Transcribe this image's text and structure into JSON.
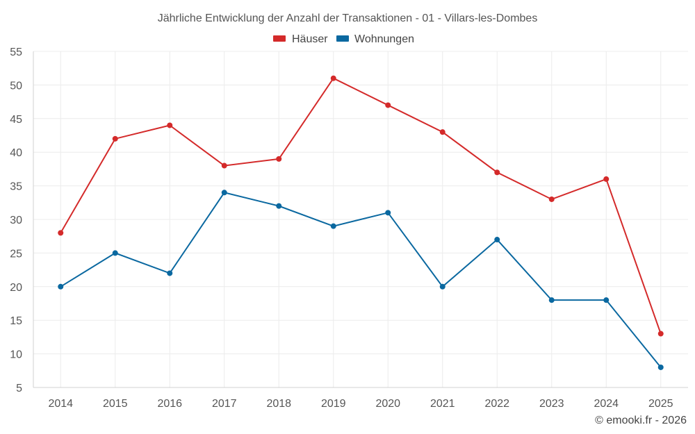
{
  "chart_data": {
    "type": "line",
    "title": "Jährliche Entwicklung der Anzahl der Transaktionen - 01 - Villars-les-Dombes",
    "categories": [
      "2014",
      "2015",
      "2016",
      "2017",
      "2018",
      "2019",
      "2020",
      "2021",
      "2022",
      "2023",
      "2024",
      "2025"
    ],
    "series": [
      {
        "name": "Häuser",
        "color": "#d42a2a",
        "values": [
          28,
          42,
          44,
          38,
          39,
          51,
          47,
          43,
          37,
          33,
          36,
          13
        ]
      },
      {
        "name": "Wohnungen",
        "color": "#0a68a0",
        "values": [
          20,
          25,
          22,
          34,
          32,
          29,
          31,
          20,
          27,
          18,
          18,
          8
        ]
      }
    ],
    "ylim": [
      5,
      55
    ],
    "yticks": [
      5,
      10,
      15,
      20,
      25,
      30,
      35,
      40,
      45,
      50,
      55
    ],
    "grid": true,
    "legend": "top-center",
    "xlabel": "",
    "ylabel": ""
  },
  "credit": "© emooki.fr - 2026"
}
